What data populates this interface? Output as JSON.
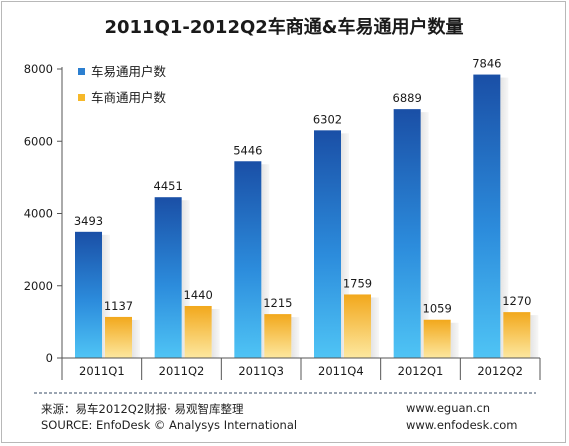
{
  "chart_data": {
    "type": "bar",
    "title": "2011Q1-2012Q2车商通&车易通用户数量",
    "categories": [
      "2011Q1",
      "2011Q2",
      "2011Q3",
      "2011Q4",
      "2012Q1",
      "2012Q2"
    ],
    "series": [
      {
        "name": "车易通用户数",
        "values": [
          3493,
          4451,
          5446,
          6302,
          6889,
          7846
        ],
        "color": "#1f6fbf"
      },
      {
        "name": "车商通用户数",
        "values": [
          1137,
          1440,
          1215,
          1759,
          1059,
          1270
        ],
        "color": "#f6b829"
      }
    ],
    "ylim": [
      0,
      8000
    ],
    "yticks": [
      0,
      2000,
      4000,
      6000,
      8000
    ],
    "xlabel": "",
    "ylabel": "",
    "grid": false,
    "legend": "top-left"
  },
  "footer": {
    "source_cn": "来源：易车2012Q2财报· 易观智库整理",
    "source_en": "SOURCE: EnfoDesk © Analysys International",
    "url1": "www.eguan.cn",
    "url2": "www.enfodesk.com"
  }
}
